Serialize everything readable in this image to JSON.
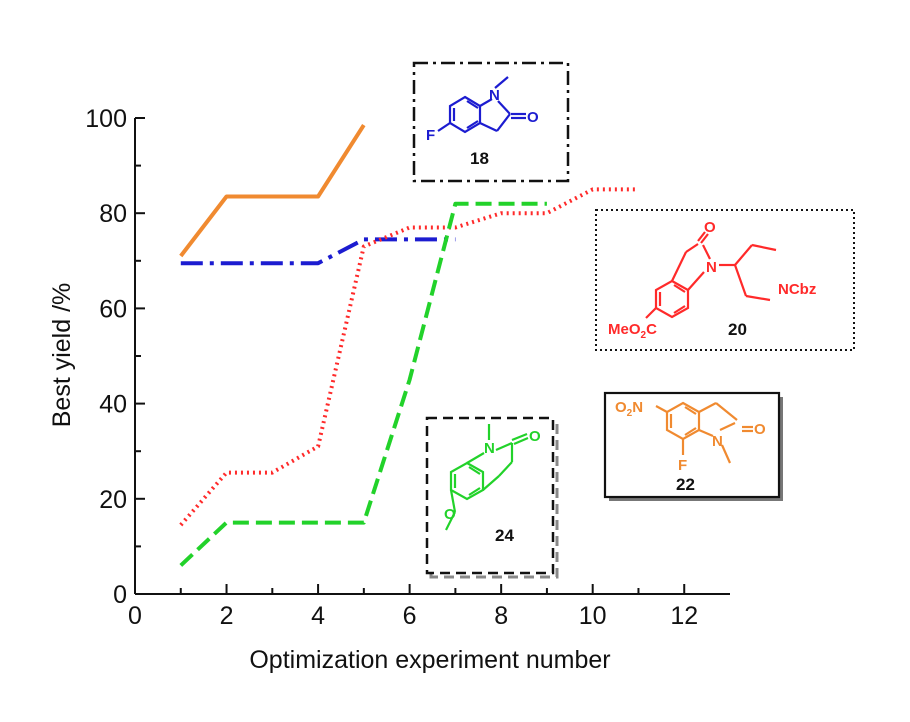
{
  "chart_data": {
    "type": "line",
    "title": "",
    "xlabel": "Optimization experiment number",
    "ylabel": "Best yield /%",
    "xlim": [
      0,
      13
    ],
    "ylim": [
      0,
      100
    ],
    "xticks": [
      0,
      2,
      4,
      6,
      8,
      10,
      12
    ],
    "yticks": [
      0,
      20,
      40,
      60,
      80,
      100
    ],
    "series": [
      {
        "name": "22",
        "color": "#f08a30",
        "style": "solid",
        "x": [
          1,
          2,
          3,
          4,
          5
        ],
        "y": [
          71,
          83.5,
          83.5,
          83.5,
          98.5
        ]
      },
      {
        "name": "18",
        "color": "#1c1cd0",
        "style": "dashdot",
        "x": [
          1,
          2,
          3,
          4,
          5,
          6,
          7
        ],
        "y": [
          69.5,
          69.5,
          69.5,
          69.5,
          74.5,
          74.5,
          74.5
        ]
      },
      {
        "name": "20",
        "color": "#ff2a2a",
        "style": "dotted",
        "x": [
          1,
          2,
          3,
          4,
          5,
          6,
          7,
          8,
          9,
          10,
          11
        ],
        "y": [
          14.5,
          25.5,
          25.5,
          31,
          73,
          77,
          77,
          80,
          80,
          85,
          85
        ]
      },
      {
        "name": "24",
        "color": "#22d22a",
        "style": "dashed",
        "x": [
          1,
          2,
          3,
          4,
          5,
          6,
          7,
          8,
          9
        ],
        "y": [
          6,
          15,
          15,
          15,
          15,
          45,
          82,
          82,
          82
        ]
      }
    ]
  },
  "structures": {
    "s18": {
      "number": "18",
      "atoms": {
        "n": "N",
        "o": "O",
        "f": "F"
      }
    },
    "s20": {
      "number": "20",
      "atoms": {
        "n1": "N",
        "n2": "NCbz",
        "o": "O",
        "ester": "MeO",
        "ester_sub": "2",
        "ester_c": "C"
      }
    },
    "s22": {
      "number": "22",
      "atoms": {
        "nitro": "O",
        "nitro_sub": "2",
        "nitro_n": "N",
        "n": "N",
        "o": "O",
        "f": "F"
      }
    },
    "s24": {
      "number": "24",
      "atoms": {
        "n": "N",
        "o": "O"
      }
    }
  }
}
